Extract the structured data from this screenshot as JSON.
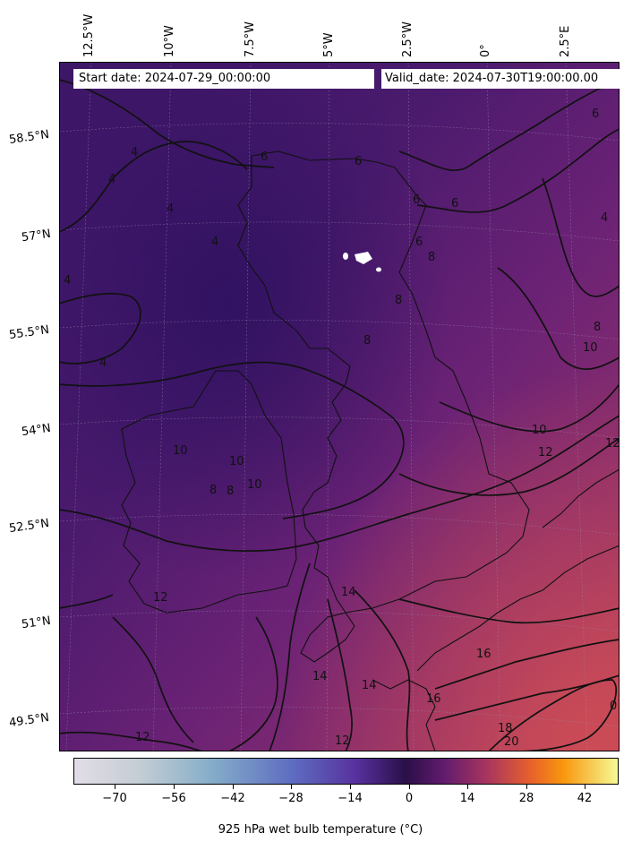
{
  "header": {
    "start_date": "Start date: 2024-07-29_00:00:00",
    "valid_date": "Valid_date: 2024-07-30T19:00:00.00"
  },
  "longitude_labels": [
    "12.5°W",
    "10°W",
    "7.5°W",
    "5°W",
    "2.5°W",
    "0°",
    "2.5°E"
  ],
  "latitude_labels": [
    "58.5°N",
    "57°N",
    "55.5°N",
    "54°N",
    "52.5°N",
    "51°N",
    "49.5°N"
  ],
  "contour_labels": [
    "4",
    "4",
    "4",
    "4",
    "4",
    "4",
    "4",
    "6",
    "6",
    "6",
    "6",
    "6",
    "6",
    "8",
    "8",
    "8",
    "8",
    "8",
    "8",
    "10",
    "10",
    "10",
    "10",
    "10",
    "12",
    "12",
    "12",
    "12",
    "12",
    "14",
    "14",
    "14",
    "16",
    "16",
    "18",
    "20",
    "0"
  ],
  "colorbar": {
    "ticks": [
      "−70",
      "−56",
      "−42",
      "−28",
      "−14",
      "0",
      "14",
      "28",
      "42"
    ],
    "title": "925 hPa wet bulb temperature ($^\\circ$C)",
    "title_display": "925 hPa wet bulb temperature (°C)",
    "colormap": "inferno-like diverging: grey-blue to purple to orange to yellow"
  },
  "colors": {
    "map_cool": "#3b1566",
    "map_mid": "#6a2275",
    "map_warm": "#b43d5a"
  }
}
